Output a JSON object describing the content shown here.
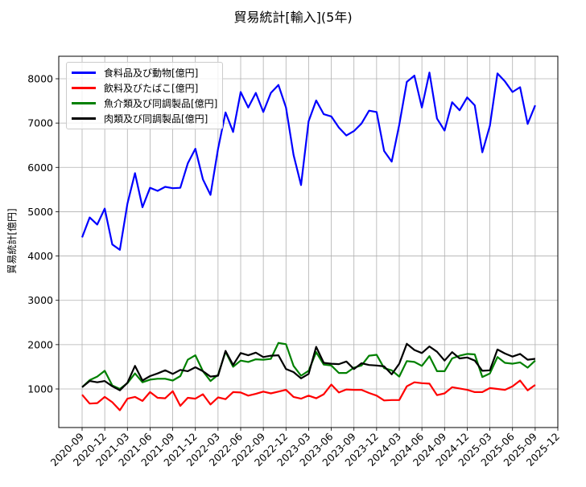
{
  "chart_data": {
    "type": "line",
    "title": "貿易統計[輸入](5年)",
    "xlabel": "",
    "ylabel": "貿易統計[億円]",
    "ylim": [
      130,
      8500
    ],
    "y_ticks": [
      1000,
      2000,
      3000,
      4000,
      5000,
      6000,
      7000,
      8000
    ],
    "x_ticks": [
      "2020-09",
      "2020-12",
      "2021-03",
      "2021-06",
      "2021-09",
      "2021-12",
      "2022-03",
      "2022-06",
      "2022-09",
      "2022-12",
      "2023-03",
      "2023-06",
      "2023-09",
      "2023-12",
      "2024-03",
      "2024-06",
      "2024-09",
      "2024-12",
      "2025-03",
      "2025-06",
      "2025-09",
      "2025-12"
    ],
    "grid": true,
    "legend_position": "upper left",
    "x": [
      "2020-09",
      "2020-10",
      "2020-11",
      "2020-12",
      "2021-01",
      "2021-02",
      "2021-03",
      "2021-04",
      "2021-05",
      "2021-06",
      "2021-07",
      "2021-08",
      "2021-09",
      "2021-10",
      "2021-11",
      "2021-12",
      "2022-01",
      "2022-02",
      "2022-03",
      "2022-04",
      "2022-05",
      "2022-06",
      "2022-07",
      "2022-08",
      "2022-09",
      "2022-10",
      "2022-11",
      "2022-12",
      "2023-01",
      "2023-02",
      "2023-03",
      "2023-04",
      "2023-05",
      "2023-06",
      "2023-07",
      "2023-08",
      "2023-09",
      "2023-10",
      "2023-11",
      "2023-12",
      "2024-01",
      "2024-02",
      "2024-03",
      "2024-04",
      "2024-05",
      "2024-06",
      "2024-07",
      "2024-08",
      "2024-09",
      "2024-10",
      "2024-11",
      "2024-12",
      "2025-01",
      "2025-02",
      "2025-03",
      "2025-04",
      "2025-05",
      "2025-06",
      "2025-07",
      "2025-08",
      "2025-09"
    ],
    "series": [
      {
        "name": "食料品及び動物[億円]",
        "color": "#0000ff",
        "values": [
          4420,
          4870,
          4710,
          5070,
          4260,
          4140,
          5180,
          5870,
          5100,
          5540,
          5470,
          5560,
          5530,
          5540,
          6090,
          6420,
          5730,
          5380,
          6420,
          7240,
          6800,
          7700,
          7350,
          7680,
          7250,
          7680,
          7860,
          7350,
          6280,
          5600,
          7040,
          7510,
          7200,
          7150,
          6900,
          6720,
          6820,
          6990,
          7280,
          7250,
          6370,
          6130,
          6960,
          7930,
          8070,
          7350,
          8140,
          7100,
          6830,
          7470,
          7290,
          7580,
          7400,
          6340,
          6940,
          8120,
          7940,
          7700,
          7810,
          6980,
          7400
        ]
      },
      {
        "name": "飲料及びたばこ[億円]",
        "color": "#ff0000",
        "values": [
          870,
          670,
          680,
          820,
          700,
          520,
          780,
          820,
          730,
          930,
          800,
          790,
          950,
          620,
          800,
          780,
          880,
          650,
          810,
          770,
          930,
          920,
          850,
          890,
          940,
          900,
          940,
          980,
          820,
          780,
          850,
          790,
          880,
          1100,
          920,
          990,
          980,
          980,
          910,
          850,
          740,
          750,
          750,
          1060,
          1150,
          1130,
          1120,
          860,
          900,
          1040,
          1010,
          980,
          930,
          930,
          1020,
          1000,
          980,
          1060,
          1190,
          970,
          1090
        ]
      },
      {
        "name": "魚介類及び同調製品[億円]",
        "color": "#008000",
        "values": [
          1040,
          1200,
          1280,
          1410,
          1080,
          1000,
          1130,
          1350,
          1150,
          1210,
          1230,
          1230,
          1190,
          1290,
          1660,
          1760,
          1400,
          1180,
          1320,
          1840,
          1500,
          1640,
          1610,
          1670,
          1660,
          1680,
          2040,
          2010,
          1520,
          1300,
          1410,
          1830,
          1550,
          1530,
          1360,
          1360,
          1480,
          1530,
          1750,
          1770,
          1470,
          1420,
          1280,
          1630,
          1610,
          1520,
          1740,
          1400,
          1400,
          1690,
          1750,
          1790,
          1780,
          1270,
          1350,
          1720,
          1590,
          1570,
          1600,
          1480,
          1640
        ]
      },
      {
        "name": "肉類及び同調製品[億円]",
        "color": "#000000",
        "values": [
          1040,
          1180,
          1150,
          1180,
          1060,
          970,
          1140,
          1520,
          1190,
          1290,
          1350,
          1420,
          1340,
          1430,
          1400,
          1490,
          1400,
          1280,
          1300,
          1860,
          1540,
          1810,
          1760,
          1820,
          1720,
          1750,
          1760,
          1450,
          1380,
          1240,
          1340,
          1950,
          1590,
          1570,
          1560,
          1620,
          1450,
          1580,
          1540,
          1530,
          1510,
          1330,
          1570,
          2020,
          1880,
          1810,
          1960,
          1840,
          1640,
          1830,
          1690,
          1710,
          1640,
          1410,
          1420,
          1890,
          1800,
          1730,
          1790,
          1660,
          1680
        ]
      }
    ]
  }
}
